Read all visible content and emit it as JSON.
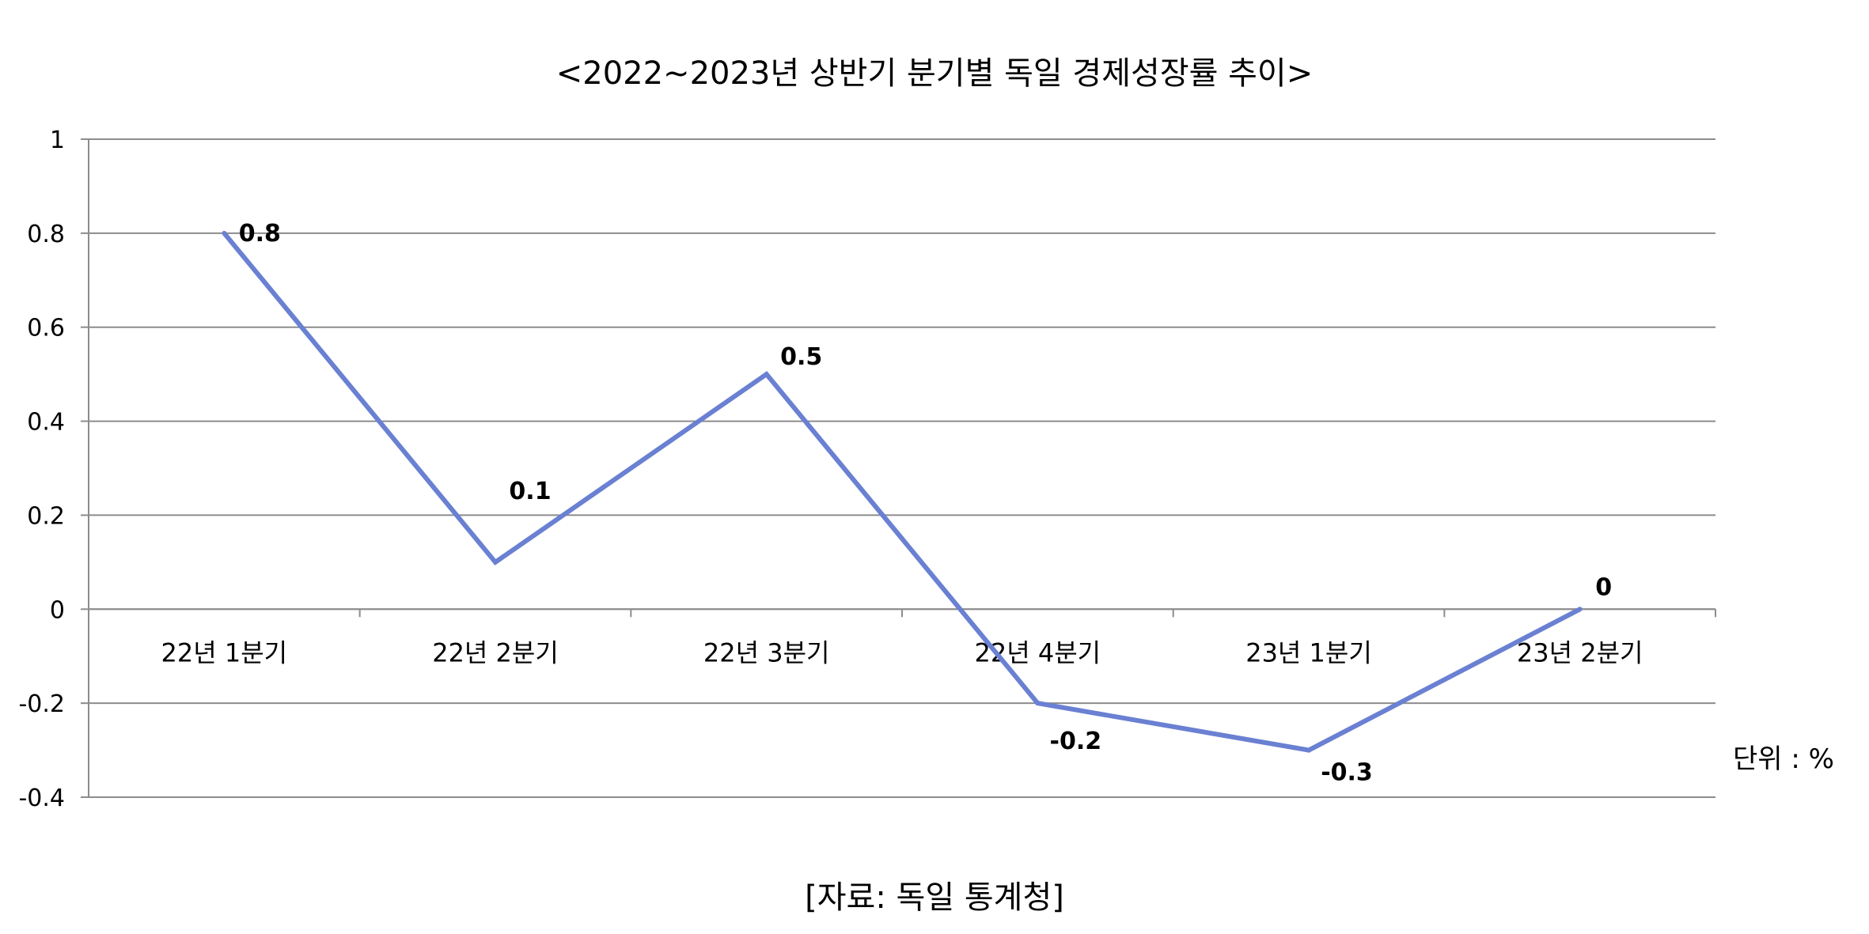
{
  "chart_data": {
    "type": "line",
    "title": "<2022~2023년 상반기 분기별 독일 경제성장률 추이>",
    "categories": [
      "22년 1분기",
      "22년 2분기",
      "22년 3분기",
      "22년 4분기",
      "23년 1분기",
      "23년 2분기"
    ],
    "series": [
      {
        "values": [
          0.8,
          0.1,
          0.5,
          -0.2,
          -0.3,
          0
        ],
        "color": "#6A80D2"
      }
    ],
    "data_labels": [
      "0.8",
      "0.1",
      "0.5",
      "-0.2",
      "-0.3",
      "0"
    ],
    "ylim": [
      -0.4,
      1
    ],
    "yticks": [
      1,
      0.8,
      0.6,
      0.4,
      0.2,
      0,
      -0.2,
      -0.4
    ],
    "ytick_labels": [
      "1",
      "0.8",
      "0.6",
      "0.4",
      "0.2",
      "0",
      "-0.2",
      "-0.4"
    ],
    "grid": true,
    "unit_label": "단위 : %",
    "source": "[자료: 독일 통계청]"
  }
}
